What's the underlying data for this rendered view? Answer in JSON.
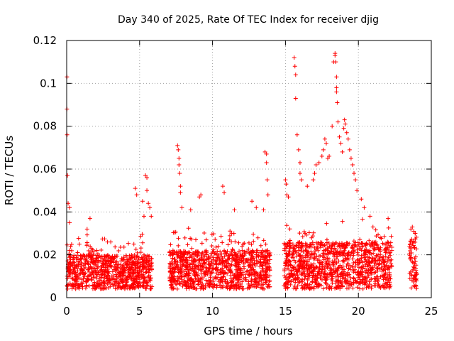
{
  "chart_data": {
    "type": "scatter",
    "title": "Day 340 of 2025, Rate Of TEC Index for receiver djig",
    "xlabel": "GPS time / hours",
    "ylabel": "ROTI / TECUs",
    "xlim": [
      0,
      25
    ],
    "ylim": [
      0,
      0.12
    ],
    "xticks": [
      0,
      5,
      10,
      15,
      20,
      25
    ],
    "xtick_labels": [
      "0",
      "5",
      "10",
      "15",
      "20",
      "25"
    ],
    "yticks": [
      0,
      0.02,
      0.04,
      0.06,
      0.08,
      0.1,
      0.12
    ],
    "ytick_labels": [
      "0",
      "0.02",
      "0.04",
      "0.06",
      "0.08",
      "0.1",
      "0.12"
    ],
    "grid": true,
    "marker": "plus",
    "series": [
      {
        "name": "ROTI",
        "color": "#ff0000",
        "segments": [
          {
            "x_range": [
              0.0,
              5.85
            ],
            "baseline": [
              0.004,
              0.02
            ]
          },
          {
            "x_range": [
              7.05,
              13.95
            ],
            "baseline": [
              0.004,
              0.022
            ]
          },
          {
            "x_range": [
              14.9,
              22.3
            ],
            "baseline": [
              0.004,
              0.026
            ]
          },
          {
            "x_range": [
              23.5,
              24.0
            ],
            "baseline": [
              0.004,
              0.028
            ]
          }
        ],
        "points": [
          [
            0.02,
            0.103
          ],
          [
            0.02,
            0.088
          ],
          [
            0.03,
            0.076
          ],
          [
            0.05,
            0.057
          ],
          [
            0.1,
            0.044
          ],
          [
            0.2,
            0.042
          ],
          [
            0.2,
            0.035
          ],
          [
            1.4,
            0.032
          ],
          [
            1.6,
            0.037
          ],
          [
            2.8,
            0.026
          ],
          [
            4.7,
            0.051
          ],
          [
            4.8,
            0.048
          ],
          [
            5.2,
            0.045
          ],
          [
            5.3,
            0.038
          ],
          [
            5.4,
            0.057
          ],
          [
            5.5,
            0.056
          ],
          [
            5.5,
            0.05
          ],
          [
            5.6,
            0.044
          ],
          [
            5.7,
            0.042
          ],
          [
            5.8,
            0.038
          ],
          [
            7.6,
            0.071
          ],
          [
            7.65,
            0.069
          ],
          [
            7.7,
            0.065
          ],
          [
            7.7,
            0.062
          ],
          [
            7.75,
            0.058
          ],
          [
            7.8,
            0.052
          ],
          [
            7.8,
            0.049
          ],
          [
            7.9,
            0.042
          ],
          [
            8.5,
            0.041
          ],
          [
            9.1,
            0.047
          ],
          [
            9.2,
            0.048
          ],
          [
            10.7,
            0.052
          ],
          [
            10.8,
            0.049
          ],
          [
            11.5,
            0.041
          ],
          [
            12.7,
            0.045
          ],
          [
            13.0,
            0.042
          ],
          [
            13.5,
            0.041
          ],
          [
            13.6,
            0.068
          ],
          [
            13.7,
            0.067
          ],
          [
            13.7,
            0.063
          ],
          [
            13.75,
            0.055
          ],
          [
            13.8,
            0.048
          ],
          [
            15.0,
            0.055
          ],
          [
            15.05,
            0.053
          ],
          [
            15.1,
            0.048
          ],
          [
            15.2,
            0.047
          ],
          [
            15.6,
            0.112
          ],
          [
            15.65,
            0.108
          ],
          [
            15.7,
            0.104
          ],
          [
            15.7,
            0.093
          ],
          [
            15.8,
            0.076
          ],
          [
            15.9,
            0.069
          ],
          [
            16.0,
            0.063
          ],
          [
            16.0,
            0.058
          ],
          [
            16.1,
            0.055
          ],
          [
            16.5,
            0.052
          ],
          [
            16.9,
            0.055
          ],
          [
            17.0,
            0.058
          ],
          [
            17.1,
            0.062
          ],
          [
            17.3,
            0.063
          ],
          [
            17.5,
            0.066
          ],
          [
            17.6,
            0.069
          ],
          [
            17.7,
            0.074
          ],
          [
            17.8,
            0.072
          ],
          [
            17.9,
            0.065
          ],
          [
            18.0,
            0.066
          ],
          [
            18.2,
            0.08
          ],
          [
            18.3,
            0.11
          ],
          [
            18.4,
            0.114
          ],
          [
            18.4,
            0.113
          ],
          [
            18.45,
            0.11
          ],
          [
            18.5,
            0.103
          ],
          [
            18.5,
            0.098
          ],
          [
            18.5,
            0.096
          ],
          [
            18.55,
            0.091
          ],
          [
            18.6,
            0.082
          ],
          [
            18.7,
            0.075
          ],
          [
            18.8,
            0.072
          ],
          [
            18.9,
            0.068
          ],
          [
            19.0,
            0.079
          ],
          [
            19.05,
            0.083
          ],
          [
            19.1,
            0.081
          ],
          [
            19.2,
            0.077
          ],
          [
            19.3,
            0.074
          ],
          [
            19.4,
            0.069
          ],
          [
            19.5,
            0.065
          ],
          [
            19.6,
            0.062
          ],
          [
            19.7,
            0.058
          ],
          [
            19.8,
            0.055
          ],
          [
            19.9,
            0.05
          ],
          [
            20.2,
            0.046
          ],
          [
            20.4,
            0.042
          ],
          [
            20.8,
            0.038
          ],
          [
            21.0,
            0.033
          ],
          [
            21.5,
            0.028
          ],
          [
            22.0,
            0.026
          ],
          [
            23.6,
            0.032
          ],
          [
            23.7,
            0.033
          ],
          [
            23.8,
            0.031
          ],
          [
            23.9,
            0.03
          ]
        ]
      }
    ]
  }
}
